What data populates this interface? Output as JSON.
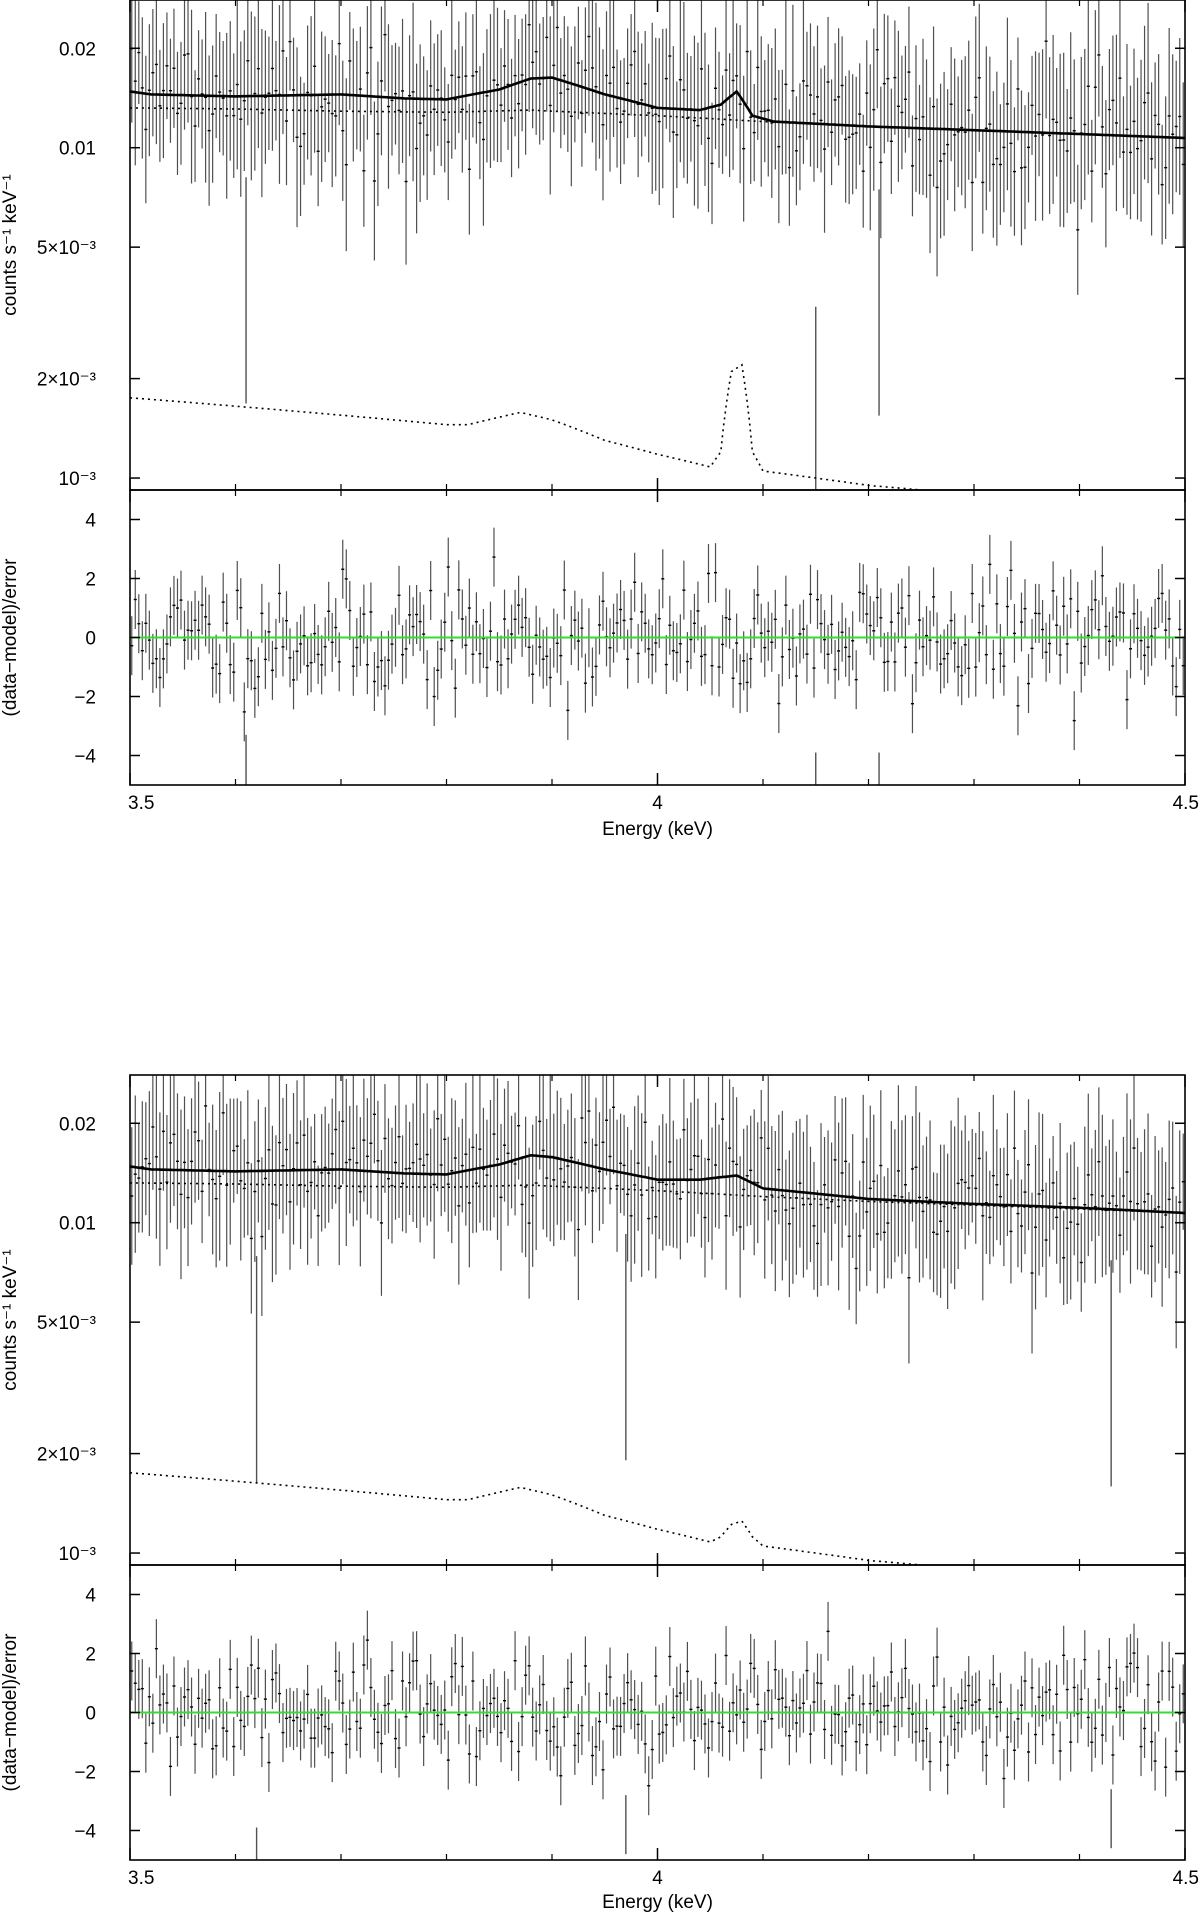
{
  "colors": {
    "data": "#505050",
    "model": "#000000",
    "component": "#000000",
    "zero_line": "#33dd33",
    "frame": "#000000"
  },
  "chart_data": [
    {
      "type": "scatter",
      "description_panel": "top spectrum with residuals",
      "xlabel": "Energy (keV)",
      "xlim": [
        3.5,
        4.5
      ],
      "x_ticks": [
        3.5,
        4,
        4.5
      ],
      "x_tick_labels": [
        "3.5",
        "4",
        "4.5"
      ],
      "spectrum": {
        "ylabel": "counts s⁻¹ keV⁻¹",
        "yscale": "log",
        "ylim": [
          0.00092,
          0.028
        ],
        "y_ticks": [
          0.001,
          0.002,
          0.005,
          0.01,
          0.02
        ],
        "y_tick_labels": [
          "10⁻³",
          "2×10⁻³",
          "5×10⁻³",
          "0.01",
          "0.02"
        ],
        "n_bins": 300,
        "data_level": 0.0136,
        "data_scatter_dex": 0.09,
        "data_error_dex": 0.21,
        "outliers": [
          [
            3.61,
            0.0037
          ],
          [
            4.15,
            0.0015
          ],
          [
            4.21,
            0.0034
          ]
        ],
        "seed": 7,
        "model_total": {
          "x": [
            3.5,
            3.52,
            3.6,
            3.7,
            3.76,
            3.8,
            3.85,
            3.88,
            3.9,
            3.95,
            4.0,
            4.04,
            4.06,
            4.075,
            4.09,
            4.11,
            4.2,
            4.3,
            4.4,
            4.5
          ],
          "y": [
            0.0148,
            0.0145,
            0.0143,
            0.0145,
            0.0141,
            0.014,
            0.015,
            0.0162,
            0.0163,
            0.0145,
            0.0132,
            0.013,
            0.0135,
            0.0148,
            0.0125,
            0.012,
            0.0116,
            0.0113,
            0.011,
            0.0107
          ]
        },
        "model_continuum": {
          "x": [
            3.5,
            3.6,
            3.7,
            3.8,
            3.88,
            3.9,
            4.0,
            4.1,
            4.2,
            4.3,
            4.4,
            4.5
          ],
          "y": [
            0.0132,
            0.0131,
            0.0129,
            0.0128,
            0.013,
            0.0129,
            0.0125,
            0.012,
            0.0116,
            0.0113,
            0.011,
            0.0107
          ]
        },
        "model_line_component": {
          "x": [
            3.5,
            3.6,
            3.65,
            3.7,
            3.8,
            3.82,
            3.87,
            3.9,
            3.95,
            4.0,
            4.05,
            4.06,
            4.07,
            4.08,
            4.09,
            4.1,
            4.15,
            4.2,
            4.25
          ],
          "y": [
            0.00175,
            0.00165,
            0.0016,
            0.00155,
            0.00145,
            0.00145,
            0.00158,
            0.0015,
            0.0013,
            0.00118,
            0.00108,
            0.0012,
            0.0021,
            0.0022,
            0.0012,
            0.00105,
            0.001,
            0.00095,
            0.00092
          ]
        }
      },
      "residuals": {
        "ylabel": "(data−model)/error",
        "ylim": [
          -5,
          5
        ],
        "y_ticks": [
          -4,
          -2,
          0,
          2,
          4
        ],
        "y_tick_labels": [
          "−4",
          "−2",
          "0",
          "2",
          "4"
        ],
        "zero_line": 0,
        "spread_sigma": 1.0,
        "errorbar_halfwidth": 1,
        "outliers": [
          [
            3.61,
            -4.3
          ],
          [
            4.15,
            -4.9
          ],
          [
            4.21,
            -4.9
          ]
        ],
        "seed": 11
      }
    },
    {
      "type": "scatter",
      "description_panel": "bottom spectrum with residuals",
      "xlabel": "Energy (keV)",
      "xlim": [
        3.5,
        4.5
      ],
      "x_ticks": [
        3.5,
        4,
        4.5
      ],
      "x_tick_labels": [
        "3.5",
        "4",
        "4.5"
      ],
      "spectrum": {
        "ylabel": "counts s⁻¹ keV⁻¹",
        "yscale": "log",
        "ylim": [
          0.00092,
          0.028
        ],
        "y_ticks": [
          0.001,
          0.002,
          0.005,
          0.01,
          0.02
        ],
        "y_tick_labels": [
          "10⁻³",
          "2×10⁻³",
          "5×10⁻³",
          "0.01",
          "0.02"
        ],
        "n_bins": 300,
        "data_level": 0.0138,
        "data_scatter_dex": 0.08,
        "data_error_dex": 0.2,
        "outliers": [
          [
            3.62,
            0.0036
          ],
          [
            3.97,
            0.0042
          ],
          [
            4.43,
            0.0035
          ]
        ],
        "seed": 23,
        "model_total": {
          "x": [
            3.5,
            3.52,
            3.6,
            3.7,
            3.76,
            3.8,
            3.85,
            3.88,
            3.9,
            3.95,
            4.0,
            4.04,
            4.075,
            4.1,
            4.2,
            4.3,
            4.4,
            4.5
          ],
          "y": [
            0.0148,
            0.0145,
            0.0143,
            0.0145,
            0.0141,
            0.014,
            0.015,
            0.016,
            0.0158,
            0.0145,
            0.0135,
            0.0135,
            0.0139,
            0.0127,
            0.0118,
            0.0114,
            0.0111,
            0.0107
          ]
        },
        "model_continuum": {
          "x": [
            3.5,
            3.6,
            3.7,
            3.8,
            3.88,
            3.9,
            4.0,
            4.1,
            4.2,
            4.3,
            4.4,
            4.5
          ],
          "y": [
            0.0132,
            0.0131,
            0.0129,
            0.0128,
            0.013,
            0.0129,
            0.0125,
            0.012,
            0.0116,
            0.0113,
            0.011,
            0.0107
          ]
        },
        "model_line_component": {
          "x": [
            3.5,
            3.6,
            3.65,
            3.7,
            3.8,
            3.82,
            3.87,
            3.9,
            3.95,
            4.0,
            4.05,
            4.06,
            4.07,
            4.08,
            4.09,
            4.1,
            4.15,
            4.2,
            4.25
          ],
          "y": [
            0.00175,
            0.00165,
            0.0016,
            0.00155,
            0.00145,
            0.00145,
            0.00158,
            0.0015,
            0.0013,
            0.00118,
            0.00108,
            0.00112,
            0.00122,
            0.00125,
            0.00112,
            0.00105,
            0.001,
            0.00095,
            0.00092
          ]
        }
      },
      "residuals": {
        "ylabel": "(data−model)/error",
        "ylim": [
          -5,
          5
        ],
        "y_ticks": [
          -4,
          -2,
          0,
          2,
          4
        ],
        "y_tick_labels": [
          "−4",
          "−2",
          "0",
          "2",
          "4"
        ],
        "zero_line": 0,
        "spread_sigma": 1.0,
        "errorbar_halfwidth": 1,
        "outliers": [
          [
            3.62,
            -4.9
          ],
          [
            3.97,
            -3.8
          ],
          [
            4.43,
            -3.6
          ]
        ],
        "seed": 31
      }
    }
  ]
}
